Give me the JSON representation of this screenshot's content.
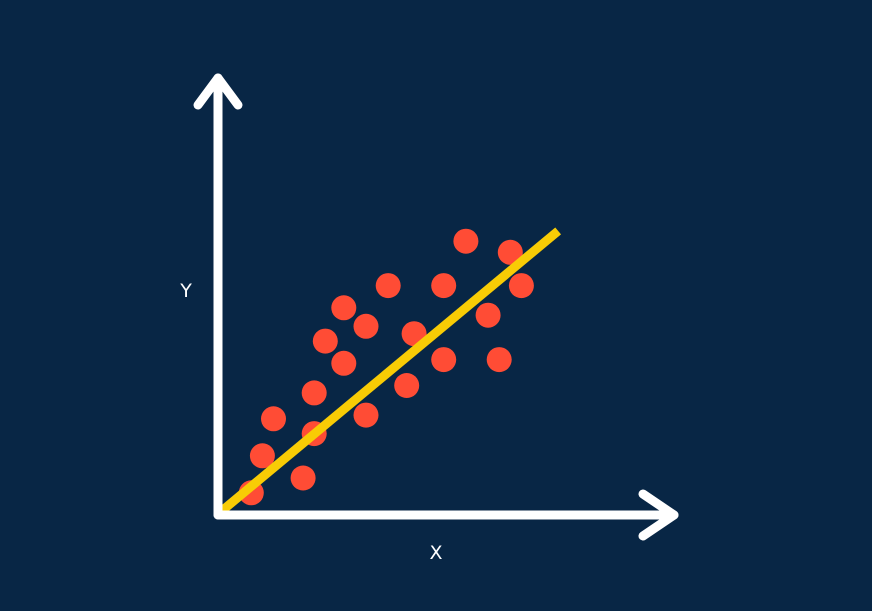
{
  "chart_data": {
    "type": "scatter",
    "title": "",
    "xlabel": "X",
    "ylabel": "Y",
    "xlim": [
      0,
      10
    ],
    "ylim": [
      0,
      10
    ],
    "grid": false,
    "legend": "none",
    "points": [
      {
        "x": 0.9,
        "y": 0.6
      },
      {
        "x": 1.2,
        "y": 1.6
      },
      {
        "x": 1.5,
        "y": 2.6
      },
      {
        "x": 2.3,
        "y": 1.0
      },
      {
        "x": 2.6,
        "y": 2.2
      },
      {
        "x": 2.6,
        "y": 3.3
      },
      {
        "x": 2.9,
        "y": 4.7
      },
      {
        "x": 3.4,
        "y": 4.1
      },
      {
        "x": 3.4,
        "y": 5.6
      },
      {
        "x": 4.0,
        "y": 2.7
      },
      {
        "x": 4.0,
        "y": 5.1
      },
      {
        "x": 4.6,
        "y": 6.2
      },
      {
        "x": 5.1,
        "y": 3.5
      },
      {
        "x": 5.3,
        "y": 4.9
      },
      {
        "x": 6.1,
        "y": 4.2
      },
      {
        "x": 6.1,
        "y": 6.2
      },
      {
        "x": 6.7,
        "y": 7.4
      },
      {
        "x": 7.3,
        "y": 5.4
      },
      {
        "x": 7.6,
        "y": 4.2
      },
      {
        "x": 7.9,
        "y": 7.1
      },
      {
        "x": 8.2,
        "y": 6.2
      }
    ],
    "trendline": {
      "x": [
        0.15,
        9.1
      ],
      "y": [
        0.15,
        7.6
      ]
    },
    "colors": {
      "background": "#082645",
      "axes": "#ffffff",
      "points": "#ff4c35",
      "trendline": "#f8cc05"
    }
  }
}
